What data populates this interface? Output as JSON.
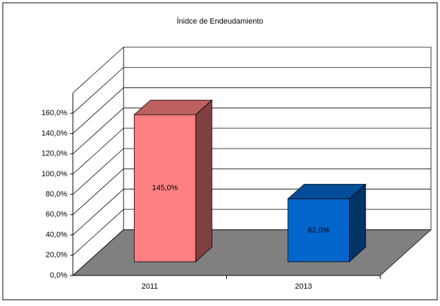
{
  "chart_data": {
    "type": "bar3d",
    "title": "Ínidce de Endeudamiento",
    "categories": [
      "2011",
      "2013"
    ],
    "values": [
      145,
      62
    ],
    "value_labels": [
      "145,0%",
      "62,0%"
    ],
    "colors": [
      "#ff8080",
      "#0066cc"
    ],
    "ylim": [
      0,
      180
    ],
    "yticks": [
      {
        "value": 0,
        "label": "0,0%"
      },
      {
        "value": 20,
        "label": "20,0%"
      },
      {
        "value": 40,
        "label": "40,0%"
      },
      {
        "value": 60,
        "label": "60,0%"
      },
      {
        "value": 80,
        "label": "80,0%"
      },
      {
        "value": 100,
        "label": "100,0%"
      },
      {
        "value": 120,
        "label": "120,0%"
      },
      {
        "value": 140,
        "label": "140,0%"
      },
      {
        "value": 160,
        "label": "160,0%"
      }
    ],
    "grid": true
  }
}
